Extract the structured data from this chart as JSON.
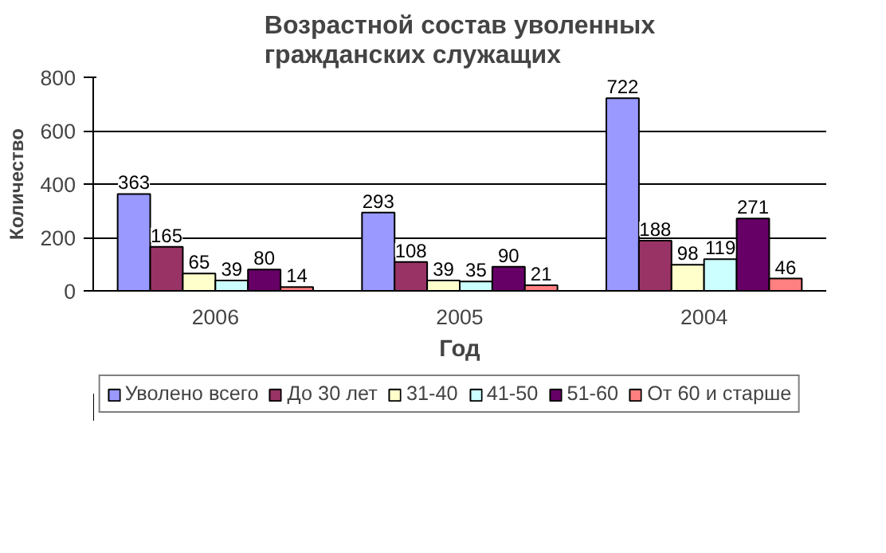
{
  "chart_data": {
    "type": "bar",
    "title": "Возрастной состав уволенных гражданских служащих",
    "xlabel": "Год",
    "ylabel": "Количество",
    "categories": [
      "2006",
      "2005",
      "2004"
    ],
    "series": [
      {
        "name": "Уволено всего",
        "color": "#9999ff",
        "values": [
          363,
          293,
          722
        ]
      },
      {
        "name": "До 30 лет",
        "color": "#993366",
        "values": [
          165,
          108,
          188
        ]
      },
      {
        "name": "31-40",
        "color": "#ffffcc",
        "values": [
          65,
          39,
          98
        ]
      },
      {
        "name": "41-50",
        "color": "#ccffff",
        "values": [
          39,
          35,
          119
        ]
      },
      {
        "name": "51-60",
        "color": "#660066",
        "values": [
          80,
          90,
          271
        ]
      },
      {
        "name": "От 60 и старше",
        "color": "#ff8080",
        "values": [
          14,
          21,
          46
        ]
      }
    ],
    "ylim": [
      0,
      800
    ],
    "yticks": [
      0,
      200,
      400,
      600,
      800
    ],
    "grid": "y",
    "legend": "bottom",
    "data_labels": true
  }
}
